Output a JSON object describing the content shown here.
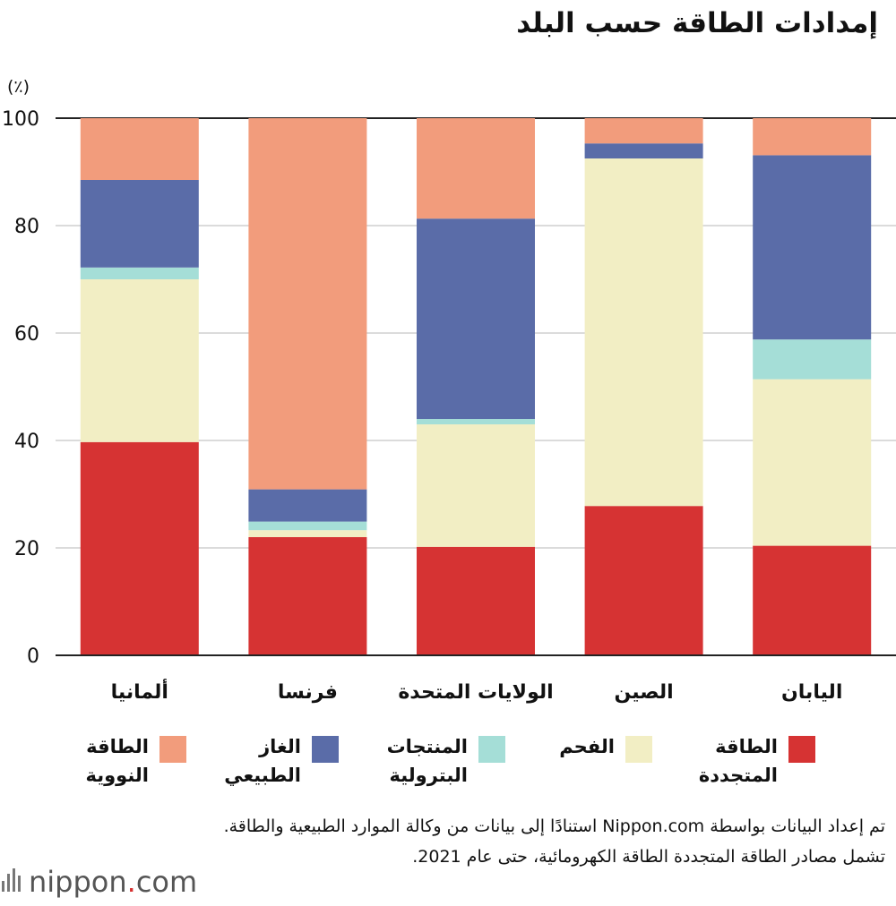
{
  "title": "إمدادات الطاقة حسب البلد",
  "unit": "(٪)",
  "legend": [
    {
      "label": "الطاقة\nالمتجددة",
      "color": "#d63333"
    },
    {
      "label": "الفحم",
      "color": "#f2eec4"
    },
    {
      "label": "المنتجات\nالبترولية",
      "color": "#a5ded7"
    },
    {
      "label": "الغاز\nالطبيعي",
      "color": "#5a6ca8"
    },
    {
      "label": "الطاقة\nالنووية",
      "color": "#f29c7c"
    }
  ],
  "note": "تم إعداد البيانات بواسطة Nippon.com استنادًا إلى بيانات من وكالة الموارد الطبيعية والطاقة. تشمل مصادر الطاقة المتجددة الطاقة الكهرومائية، حتى عام 2021.",
  "logo": {
    "name": "nippon",
    "dot": ".",
    "tld": "com"
  },
  "chart_data": {
    "type": "bar",
    "stacked": true,
    "categories": [
      "ألمانيا",
      "فرنسا",
      "الولايات المتحدة",
      "الصين",
      "اليابان"
    ],
    "series": [
      {
        "name": "الطاقة المتجددة",
        "color": "#d63333",
        "values": [
          39.7,
          22.0,
          20.2,
          27.8,
          20.4
        ]
      },
      {
        "name": "الفحم",
        "color": "#f2eec4",
        "values": [
          30.3,
          1.3,
          22.8,
          64.7,
          31.0
        ]
      },
      {
        "name": "المنتجات البترولية",
        "color": "#a5ded7",
        "values": [
          2.2,
          1.6,
          1.0,
          0.0,
          7.4
        ]
      },
      {
        "name": "الغاز الطبيعي",
        "color": "#5a6ca8",
        "values": [
          16.3,
          6.0,
          37.3,
          2.8,
          34.3
        ]
      },
      {
        "name": "الطاقة النووية",
        "color": "#f29c7c",
        "values": [
          11.5,
          69.1,
          18.7,
          4.7,
          6.9
        ]
      }
    ],
    "ylim": [
      0,
      100
    ],
    "yticks": [
      0,
      20,
      40,
      60,
      80,
      100
    ],
    "grid": true,
    "legend_position": "bottom"
  }
}
